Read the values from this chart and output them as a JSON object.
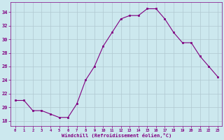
{
  "x": [
    0,
    1,
    2,
    3,
    4,
    5,
    6,
    7,
    8,
    9,
    10,
    11,
    12,
    13,
    14,
    15,
    16,
    17,
    18,
    19,
    20,
    21,
    22,
    23
  ],
  "y": [
    21,
    21,
    19.5,
    19.5,
    19,
    18.5,
    18.5,
    20.5,
    24,
    26,
    29,
    31,
    33,
    33.5,
    33.5,
    34.5,
    34.5,
    33,
    31,
    29.5,
    29.5,
    27.5,
    26,
    24.5
  ],
  "line_color": "#800080",
  "marker": "s",
  "marker_size": 2,
  "bg_color": "#cce8ee",
  "grid_color": "#b0c8d0",
  "xlabel": "Windchill (Refroidissement éolien,°C)",
  "xlabel_color": "#800080",
  "ylabel_ticks": [
    18,
    20,
    22,
    24,
    26,
    28,
    30,
    32,
    34
  ],
  "ylim": [
    17.2,
    35.5
  ],
  "xlim": [
    -0.5,
    23.5
  ],
  "tick_color": "#800080",
  "title": ""
}
